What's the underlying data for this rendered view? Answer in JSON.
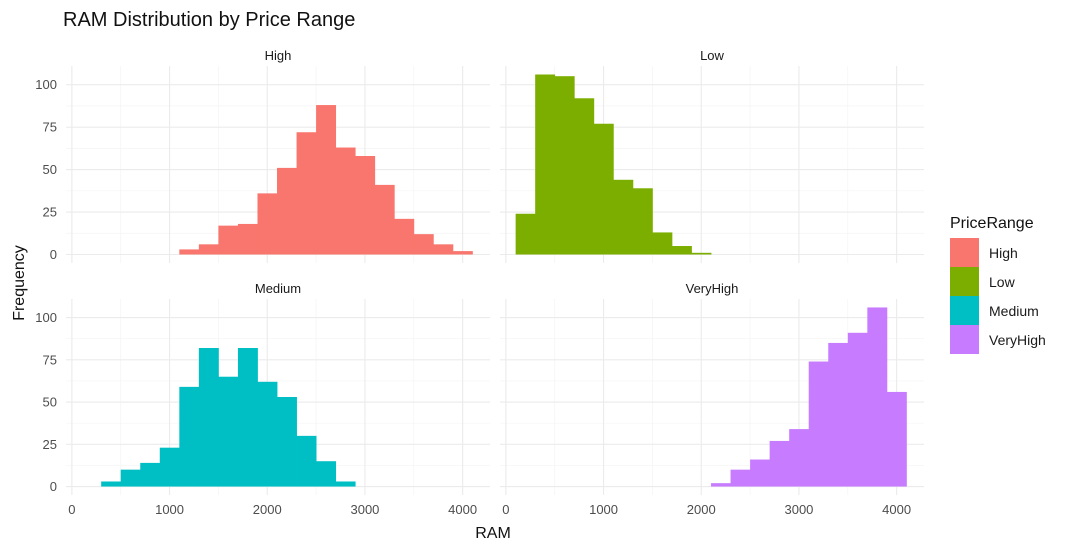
{
  "chart_data": {
    "type": "bar",
    "title": "RAM Distribution by Price Range",
    "xlabel": "RAM",
    "ylabel": "Frequency",
    "xlim": [
      -60,
      4280
    ],
    "ylim": [
      -5,
      111
    ],
    "x_ticks": [
      0,
      1000,
      2000,
      3000,
      4000
    ],
    "y_ticks": [
      0,
      25,
      50,
      75,
      100
    ],
    "bin_width": 200,
    "grid": true,
    "legend": {
      "title": "PriceRange",
      "position": "right"
    },
    "panels": [
      {
        "name": "High",
        "color": "#F8766D",
        "bins": [
          {
            "x": 1200,
            "count": 3
          },
          {
            "x": 1400,
            "count": 6
          },
          {
            "x": 1600,
            "count": 17
          },
          {
            "x": 1800,
            "count": 18
          },
          {
            "x": 2000,
            "count": 36
          },
          {
            "x": 2200,
            "count": 51
          },
          {
            "x": 2400,
            "count": 72
          },
          {
            "x": 2600,
            "count": 88
          },
          {
            "x": 2800,
            "count": 63
          },
          {
            "x": 3000,
            "count": 58
          },
          {
            "x": 3200,
            "count": 41
          },
          {
            "x": 3400,
            "count": 21
          },
          {
            "x": 3600,
            "count": 12
          },
          {
            "x": 3800,
            "count": 6
          },
          {
            "x": 4000,
            "count": 2
          }
        ]
      },
      {
        "name": "Low",
        "color": "#7CAE00",
        "bins": [
          {
            "x": 200,
            "count": 24
          },
          {
            "x": 400,
            "count": 106
          },
          {
            "x": 600,
            "count": 105
          },
          {
            "x": 800,
            "count": 92
          },
          {
            "x": 1000,
            "count": 77
          },
          {
            "x": 1200,
            "count": 44
          },
          {
            "x": 1400,
            "count": 39
          },
          {
            "x": 1600,
            "count": 13
          },
          {
            "x": 1800,
            "count": 5
          },
          {
            "x": 2000,
            "count": 1
          }
        ]
      },
      {
        "name": "Medium",
        "color": "#00BFC4",
        "bins": [
          {
            "x": 400,
            "count": 3
          },
          {
            "x": 600,
            "count": 10
          },
          {
            "x": 800,
            "count": 14
          },
          {
            "x": 1000,
            "count": 23
          },
          {
            "x": 1200,
            "count": 59
          },
          {
            "x": 1400,
            "count": 82
          },
          {
            "x": 1600,
            "count": 65
          },
          {
            "x": 1800,
            "count": 82
          },
          {
            "x": 2000,
            "count": 62
          },
          {
            "x": 2200,
            "count": 53
          },
          {
            "x": 2400,
            "count": 30
          },
          {
            "x": 2600,
            "count": 15
          },
          {
            "x": 2800,
            "count": 3
          }
        ]
      },
      {
        "name": "VeryHigh",
        "color": "#C77CFF",
        "bins": [
          {
            "x": 2200,
            "count": 2
          },
          {
            "x": 2400,
            "count": 10
          },
          {
            "x": 2600,
            "count": 16
          },
          {
            "x": 2800,
            "count": 27
          },
          {
            "x": 3000,
            "count": 34
          },
          {
            "x": 3200,
            "count": 74
          },
          {
            "x": 3400,
            "count": 85
          },
          {
            "x": 3600,
            "count": 91
          },
          {
            "x": 3800,
            "count": 106
          },
          {
            "x": 4000,
            "count": 56
          }
        ]
      }
    ]
  }
}
